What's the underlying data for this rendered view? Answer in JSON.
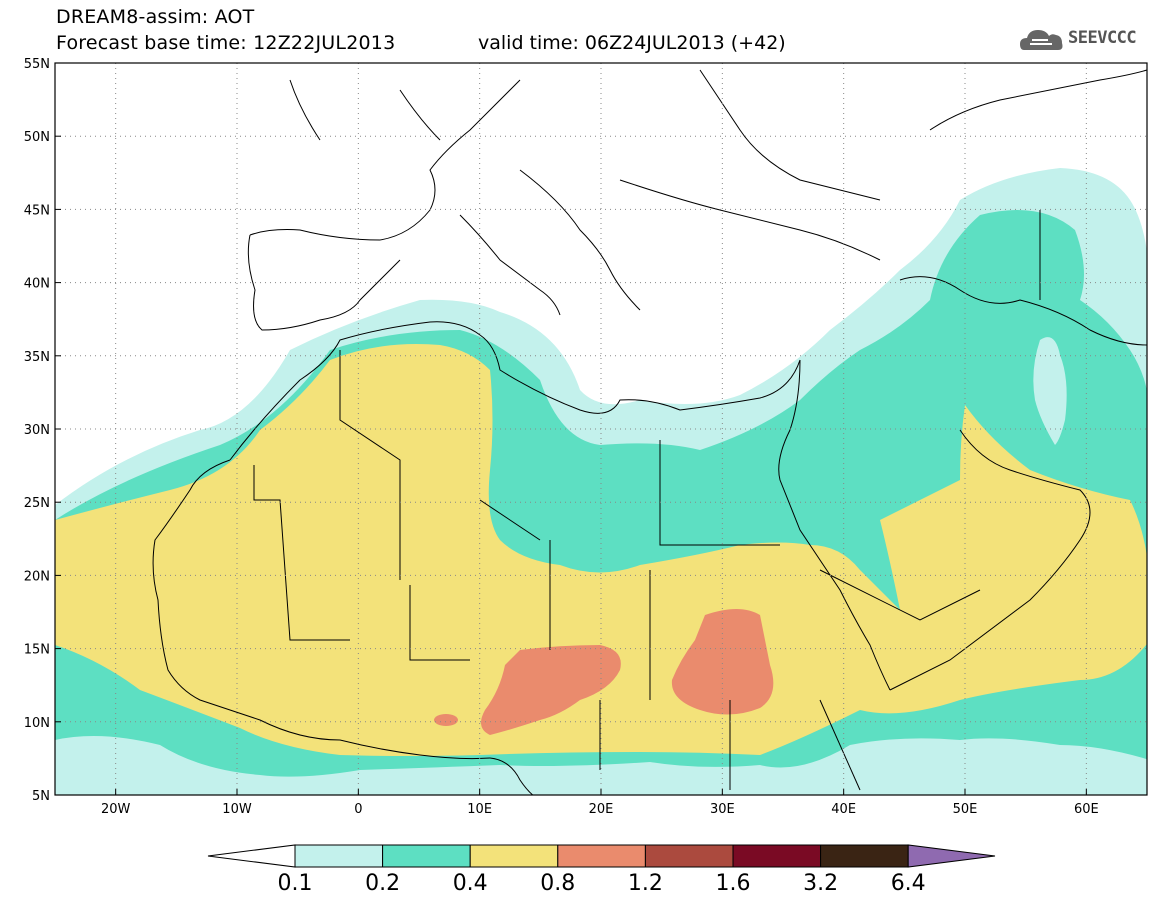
{
  "header": {
    "title_line1": "DREAM8-assim: AOT",
    "base_time": "Forecast base time: 12Z22JUL2013",
    "valid_time": "valid time: 06Z24JUL2013 (+42)",
    "logo_text": "SEEVCCC"
  },
  "map": {
    "lat_labels": [
      "55N",
      "50N",
      "45N",
      "40N",
      "35N",
      "30N",
      "25N",
      "20N",
      "15N",
      "10N",
      "5N"
    ],
    "lon_labels": [
      "20W",
      "10W",
      "0",
      "10E",
      "20E",
      "30E",
      "40E",
      "50E",
      "60E"
    ],
    "colors": {
      "c1": "#c3f1ec",
      "c2": "#5ddfc2",
      "c3": "#f3e27a",
      "c4": "#ea8b6d",
      "border": "#000000"
    }
  },
  "colorbar": {
    "labels": [
      "0.1",
      "0.2",
      "0.4",
      "0.8",
      "1.2",
      "1.6",
      "3.2",
      "6.4"
    ],
    "colors": [
      "#ffffff",
      "#c3f1ec",
      "#5ddfc2",
      "#f3e27a",
      "#ea8b6d",
      "#ab4a3e",
      "#7a0a24",
      "#3a2414",
      "#8f6ab0"
    ]
  }
}
